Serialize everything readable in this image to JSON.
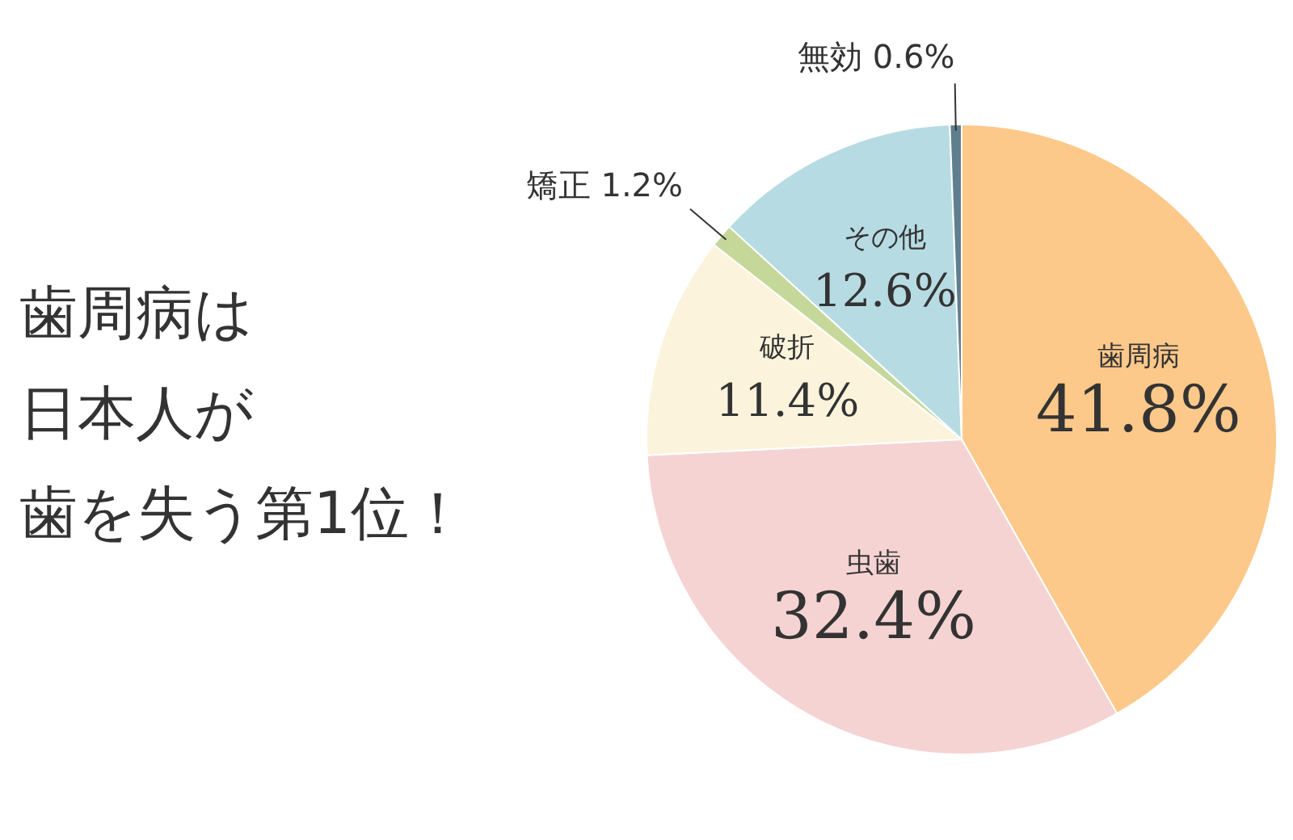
{
  "chart_data": {
    "type": "pie",
    "annotations": [
      "歯周病は",
      "日本人が",
      "歯を失う第1位！"
    ],
    "categories": [
      "歯周病",
      "虫歯",
      "破折",
      "矯正",
      "その他",
      "無効"
    ],
    "values": [
      41.8,
      32.4,
      11.4,
      1.2,
      12.6,
      0.6
    ],
    "value_labels": [
      "41.8%",
      "32.4%",
      "11.4%",
      "1.2%",
      "12.6%",
      "0.6%"
    ],
    "colors": [
      "#fcc98a",
      "#f6d3d3",
      "#fbf3dc",
      "#c5d89a",
      "#b7dbe3",
      "#5f7f8f"
    ]
  }
}
